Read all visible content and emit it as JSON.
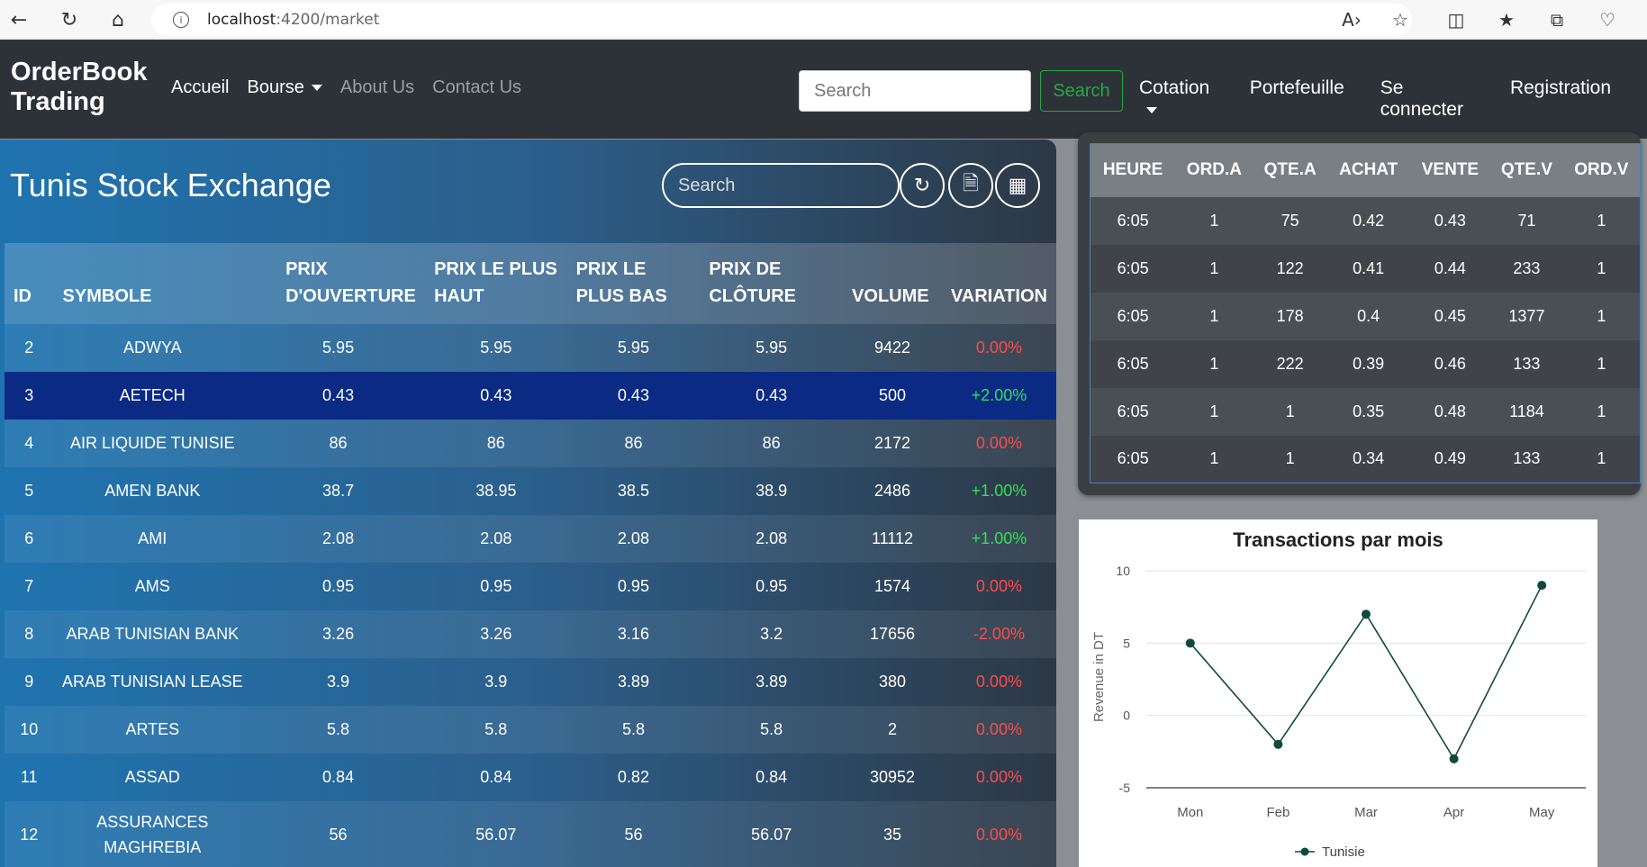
{
  "browser": {
    "url_host": "localhost",
    "url_path": ":4200/market",
    "icons": [
      "back-icon",
      "reload-icon",
      "home-icon",
      "info-icon",
      "read-aloud-icon",
      "favorite-icon",
      "split-screen-icon",
      "favorites-list-icon",
      "collections-icon",
      "browser-essentials-icon"
    ]
  },
  "nav": {
    "brand_line1": "OrderBook",
    "brand_line2": "Trading",
    "links": {
      "accueil": "Accueil",
      "bourse": "Bourse",
      "about": "About Us",
      "contact": "Contact Us"
    },
    "search_placeholder": "Search",
    "search_button": "Search",
    "cotation": "Cotation",
    "portefeuille": "Portefeuille",
    "login": "Se connecter",
    "register": "Registration",
    "accent_green": "#28a745"
  },
  "market": {
    "title": "Tunis Stock Exchange",
    "search_placeholder": "Search",
    "actions": [
      "refresh-icon",
      "pdf-icon",
      "excel-icon"
    ],
    "columns": [
      "ID",
      "SYMBOLE",
      "PRIX D'OUVERTURE",
      "PRIX LE PLUS HAUT",
      "PRIX LE PLUS BAS",
      "PRIX DE CLÔTURE",
      "VOLUME",
      "VARIATION"
    ],
    "rows": [
      {
        "id": "2",
        "symbol": "ADWYA",
        "open": "5.95",
        "high": "5.95",
        "low": "5.95",
        "close": "5.95",
        "volume": "9422",
        "variation": "0.00%",
        "trend": "neg"
      },
      {
        "id": "3",
        "symbol": "AETECH",
        "open": "0.43",
        "high": "0.43",
        "low": "0.43",
        "close": "0.43",
        "volume": "500",
        "variation": "+2.00%",
        "trend": "pos",
        "selected": true
      },
      {
        "id": "4",
        "symbol": "AIR LIQUIDE TUNISIE",
        "open": "86",
        "high": "86",
        "low": "86",
        "close": "86",
        "volume": "2172",
        "variation": "0.00%",
        "trend": "neg"
      },
      {
        "id": "5",
        "symbol": "AMEN BANK",
        "open": "38.7",
        "high": "38.95",
        "low": "38.5",
        "close": "38.9",
        "volume": "2486",
        "variation": "+1.00%",
        "trend": "pos"
      },
      {
        "id": "6",
        "symbol": "AMI",
        "open": "2.08",
        "high": "2.08",
        "low": "2.08",
        "close": "2.08",
        "volume": "11112",
        "variation": "+1.00%",
        "trend": "pos"
      },
      {
        "id": "7",
        "symbol": "AMS",
        "open": "0.95",
        "high": "0.95",
        "low": "0.95",
        "close": "0.95",
        "volume": "1574",
        "variation": "0.00%",
        "trend": "neg"
      },
      {
        "id": "8",
        "symbol": "ARAB TUNISIAN BANK",
        "open": "3.26",
        "high": "3.26",
        "low": "3.16",
        "close": "3.2",
        "volume": "17656",
        "variation": "-2.00%",
        "trend": "neg"
      },
      {
        "id": "9",
        "symbol": "ARAB TUNISIAN LEASE",
        "open": "3.9",
        "high": "3.9",
        "low": "3.89",
        "close": "3.89",
        "volume": "380",
        "variation": "0.00%",
        "trend": "neg"
      },
      {
        "id": "10",
        "symbol": "ARTES",
        "open": "5.8",
        "high": "5.8",
        "low": "5.8",
        "close": "5.8",
        "volume": "2",
        "variation": "0.00%",
        "trend": "neg"
      },
      {
        "id": "11",
        "symbol": "ASSAD",
        "open": "0.84",
        "high": "0.84",
        "low": "0.82",
        "close": "0.84",
        "volume": "30952",
        "variation": "0.00%",
        "trend": "neg"
      },
      {
        "id": "12",
        "symbol": "ASSURANCES MAGHREBIA",
        "open": "56",
        "high": "56.07",
        "low": "56",
        "close": "56.07",
        "volume": "35",
        "variation": "0.00%",
        "trend": "neg",
        "tall": true
      }
    ]
  },
  "orderbook": {
    "columns": [
      "HEURE",
      "ORD.A",
      "QTE.A",
      "ACHAT",
      "VENTE",
      "QTE.V",
      "ORD.V"
    ],
    "rows": [
      [
        "6:05",
        "1",
        "75",
        "0.42",
        "0.43",
        "71",
        "1"
      ],
      [
        "6:05",
        "1",
        "122",
        "0.41",
        "0.44",
        "233",
        "1"
      ],
      [
        "6:05",
        "1",
        "178",
        "0.4",
        "0.45",
        "1377",
        "1"
      ],
      [
        "6:05",
        "1",
        "222",
        "0.39",
        "0.46",
        "133",
        "1"
      ],
      [
        "6:05",
        "1",
        "1",
        "0.35",
        "0.48",
        "1184",
        "1"
      ],
      [
        "6:05",
        "1",
        "1",
        "0.34",
        "0.49",
        "133",
        "1"
      ]
    ]
  },
  "chart_data": {
    "type": "line",
    "title": "Transactions par mois",
    "xlabel": "",
    "ylabel": "Revenue in DT",
    "categories": [
      "Mon",
      "Feb",
      "Mar",
      "Apr",
      "May"
    ],
    "yticks": [
      10,
      5,
      0,
      -5
    ],
    "ylim": [
      -5,
      10
    ],
    "grid": true,
    "legend": "bottom",
    "series": [
      {
        "name": "Tunisie",
        "values": [
          5,
          -2,
          7,
          -3,
          9
        ],
        "color": "#0f4a3c"
      }
    ]
  }
}
